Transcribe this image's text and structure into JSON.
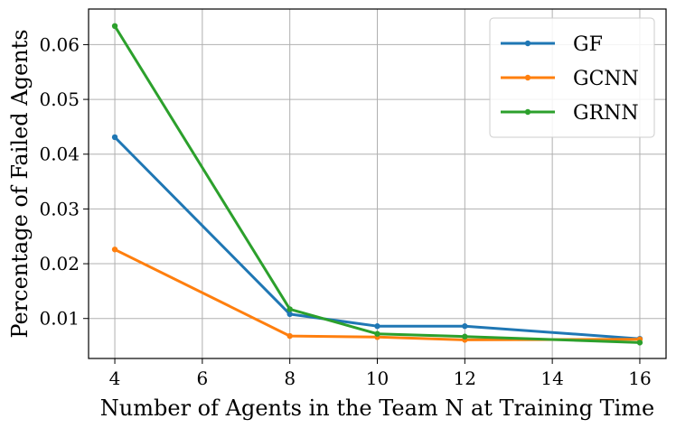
{
  "chart_data": {
    "type": "line",
    "title": "",
    "xlabel": "Number of Agents in the Team N at Training Time",
    "ylabel": "Percentage of Failed Agents",
    "x": [
      4,
      8,
      10,
      12,
      16
    ],
    "xlim": [
      3.4,
      16.6
    ],
    "ylim": [
      0.0027,
      0.0665
    ],
    "xticks": [
      4,
      6,
      8,
      10,
      12,
      14,
      16
    ],
    "yticks": [
      0.01,
      0.02,
      0.03,
      0.04,
      0.05,
      0.06
    ],
    "xtick_labels": [
      "4",
      "6",
      "8",
      "10",
      "12",
      "14",
      "16"
    ],
    "ytick_labels": [
      "0.01",
      "0.02",
      "0.03",
      "0.04",
      "0.05",
      "0.06"
    ],
    "grid": true,
    "legend_position": "top-right",
    "series": [
      {
        "name": "GF",
        "color": "#1f77b4",
        "values": [
          0.0431,
          0.0108,
          0.0086,
          0.0086,
          0.0063
        ]
      },
      {
        "name": "GCNN",
        "color": "#ff7f0e",
        "values": [
          0.0226,
          0.0068,
          0.0066,
          0.0061,
          0.0062
        ]
      },
      {
        "name": "GRNN",
        "color": "#2ca02c",
        "values": [
          0.0634,
          0.0117,
          0.0072,
          0.0067,
          0.0056
        ]
      }
    ]
  }
}
